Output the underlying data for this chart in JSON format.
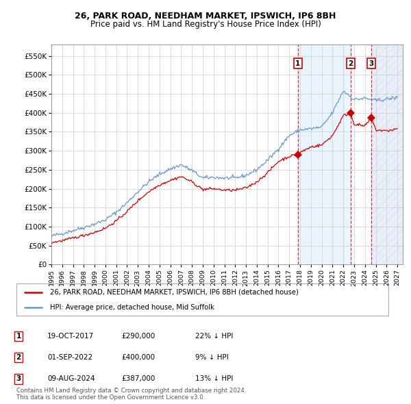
{
  "title1": "26, PARK ROAD, NEEDHAM MARKET, IPSWICH, IP6 8BH",
  "title2": "Price paid vs. HM Land Registry's House Price Index (HPI)",
  "xlim_start": 1995.0,
  "xlim_end": 2027.5,
  "ylim": [
    0,
    580000
  ],
  "yticks": [
    0,
    50000,
    100000,
    150000,
    200000,
    250000,
    300000,
    350000,
    400000,
    450000,
    500000,
    550000
  ],
  "ytick_labels": [
    "£0",
    "£50K",
    "£100K",
    "£150K",
    "£200K",
    "£250K",
    "£300K",
    "£350K",
    "£400K",
    "£450K",
    "£500K",
    "£550K"
  ],
  "sale_dates": [
    2017.8,
    2022.67,
    2024.6
  ],
  "sale_prices": [
    290000,
    400000,
    387000
  ],
  "sale_labels": [
    "1",
    "2",
    "3"
  ],
  "sale_info": [
    {
      "num": "1",
      "date": "19-OCT-2017",
      "price": "£290,000",
      "pct": "22% ↓ HPI"
    },
    {
      "num": "2",
      "date": "01-SEP-2022",
      "price": "£400,000",
      "pct": "9% ↓ HPI"
    },
    {
      "num": "3",
      "date": "09-AUG-2024",
      "price": "£387,000",
      "pct": "13% ↓ HPI"
    }
  ],
  "house_color": "#cc0000",
  "hpi_color": "#6699cc",
  "bg_shade_color": "#ddeeff",
  "hatch_color": "#c8d8f0",
  "footnote": "Contains HM Land Registry data © Crown copyright and database right 2024.\nThis data is licensed under the Open Government Licence v3.0.",
  "legend_house": "26, PARK ROAD, NEEDHAM MARKET, IPSWICH, IP6 8BH (detached house)",
  "legend_hpi": "HPI: Average price, detached house, Mid Suffolk",
  "hpi_key_years": [
    1995,
    1996,
    1997,
    1998,
    1999,
    2000,
    2001,
    2002,
    2003,
    2004,
    2005,
    2006,
    2007,
    2008,
    2009,
    2010,
    2011,
    2012,
    2013,
    2014,
    2015,
    2016,
    2017,
    2018,
    2019,
    2020,
    2021,
    2022,
    2023,
    2024,
    2025,
    2026,
    2027
  ],
  "hpi_key_vals": [
    75000,
    82000,
    90000,
    98000,
    107000,
    118000,
    138000,
    163000,
    192000,
    218000,
    238000,
    252000,
    263000,
    248000,
    228000,
    230000,
    228000,
    228000,
    235000,
    250000,
    275000,
    305000,
    340000,
    355000,
    358000,
    362000,
    400000,
    458000,
    435000,
    438000,
    432000,
    436000,
    440000
  ],
  "house_key_years": [
    1995,
    1996,
    1997,
    1998,
    1999,
    2000,
    2001,
    2002,
    2003,
    2004,
    2005,
    2006,
    2007,
    2008,
    2009,
    2010,
    2011,
    2012,
    2013,
    2014,
    2015,
    2016,
    2017,
    2017.8,
    2018,
    2019,
    2020,
    2021,
    2022,
    2022.67,
    2023,
    2024,
    2024.6,
    2025,
    2026,
    2027
  ],
  "house_key_vals": [
    58000,
    63000,
    70000,
    77000,
    85000,
    96000,
    115000,
    140000,
    168000,
    192000,
    210000,
    222000,
    232000,
    218000,
    198000,
    200000,
    196000,
    196000,
    202000,
    218000,
    242000,
    272000,
    285000,
    290000,
    295000,
    310000,
    315000,
    340000,
    392000,
    400000,
    370000,
    365000,
    387000,
    355000,
    352000,
    358000
  ]
}
